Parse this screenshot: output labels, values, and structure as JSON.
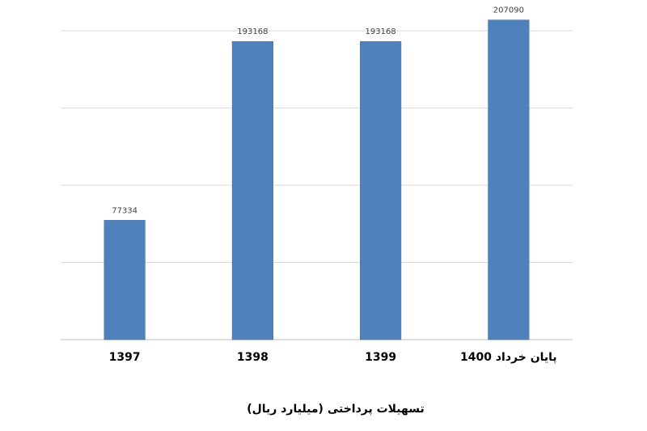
{
  "chart_data": {
    "type": "bar",
    "x_label": "تسهیلات پرداختی (میلیارد ریال)",
    "categories": [
      "1397",
      "1398",
      "1399",
      "پایان خرداد 1400"
    ],
    "values": [
      77334,
      193168,
      193168,
      207090
    ],
    "color": "#4f81bd",
    "ylim": [
      0,
      220000
    ],
    "yticks": [
      0,
      50000,
      100000,
      150000,
      200000
    ],
    "grid": true
  }
}
